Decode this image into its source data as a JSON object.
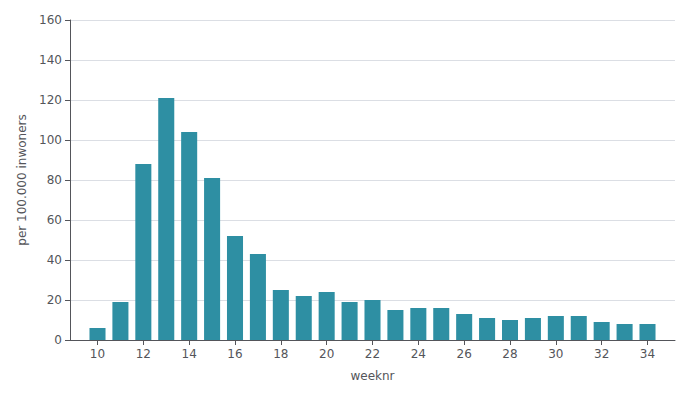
{
  "chart_data": {
    "type": "bar",
    "x": [
      10,
      11,
      12,
      13,
      14,
      15,
      16,
      17,
      18,
      19,
      20,
      21,
      22,
      23,
      24,
      25,
      26,
      27,
      28,
      29,
      30,
      31,
      32,
      33,
      34
    ],
    "values": [
      6,
      19,
      88,
      121,
      104,
      81,
      52,
      43,
      25,
      22,
      24,
      19,
      20,
      15,
      16,
      16,
      13,
      11,
      10,
      11,
      12,
      12,
      9,
      8,
      8
    ],
    "color": "#2e8fa3",
    "xlabel": "weeknr",
    "ylabel": "per 100.000 inwoners",
    "xlim": [
      8.8,
      35.2
    ],
    "xticks": [
      10,
      12,
      14,
      16,
      18,
      20,
      22,
      24,
      26,
      28,
      30,
      32,
      34
    ],
    "ylim": [
      0,
      160
    ],
    "yticks": [
      0,
      20,
      40,
      60,
      80,
      100,
      120,
      140,
      160
    ],
    "grid": true
  }
}
